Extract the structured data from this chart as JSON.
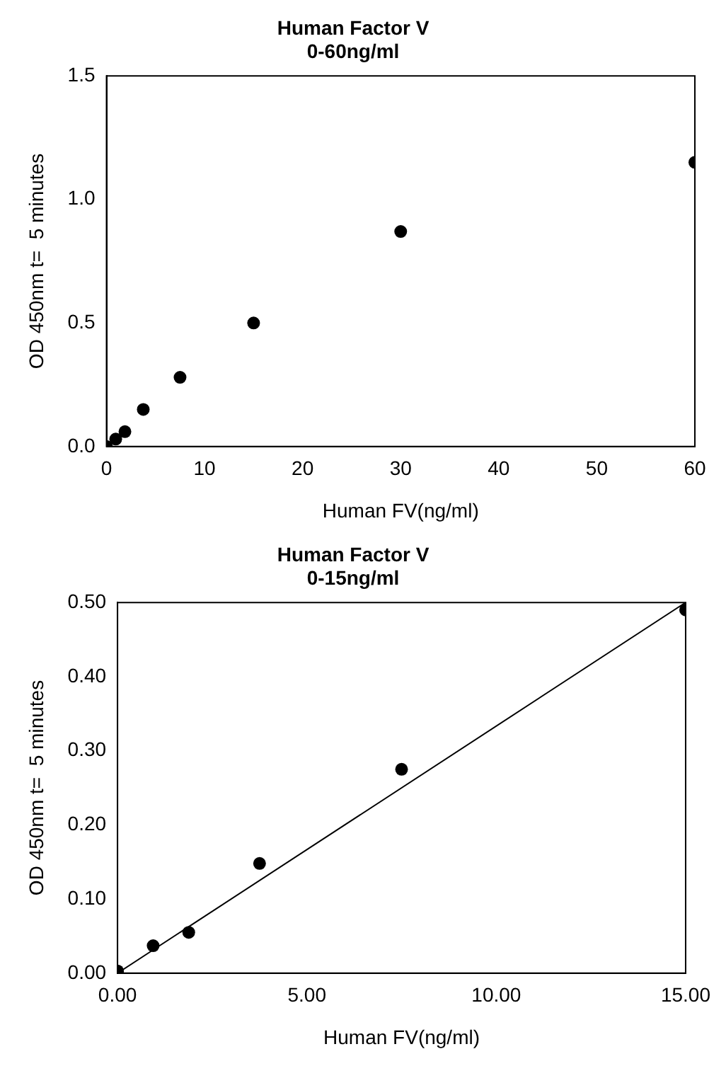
{
  "chart_data": [
    {
      "type": "scatter",
      "title": "Human Factor V",
      "subtitle": "0-60ng/ml",
      "xlabel": "Human FV(ng/ml)",
      "ylabel": "OD 450nm t=  5 minutes",
      "marker": "circle",
      "series": [
        {
          "color": "#000000",
          "x": [
            0,
            0.94,
            1.88,
            3.75,
            7.5,
            15,
            30,
            60
          ],
          "values": [
            0.0,
            0.03,
            0.06,
            0.15,
            0.28,
            0.5,
            0.87,
            1.15
          ]
        }
      ],
      "xlim": [
        0,
        60
      ],
      "xticks": [
        0,
        10,
        20,
        30,
        40,
        50,
        60
      ],
      "ylim": [
        0,
        1.5
      ],
      "yticks": [
        {
          "value": 0,
          "label": "0.0"
        },
        {
          "value": 0.5,
          "label": "0.5"
        },
        {
          "value": 1,
          "label": "1.0"
        },
        {
          "value": 1.5,
          "label": "1.5"
        }
      ]
    },
    {
      "type": "scatter",
      "title": "Human Factor V",
      "subtitle": "0-15ng/ml",
      "xlabel": "Human FV(ng/ml)",
      "ylabel": "OD 450nm t=  5 minutes",
      "marker": "circle",
      "series": [
        {
          "color": "#000000",
          "x": [
            0,
            0.94,
            1.88,
            3.75,
            7.5,
            15
          ],
          "values": [
            0.003,
            0.037,
            0.055,
            0.148,
            0.275,
            0.49
          ]
        },
        {
          "type": "line",
          "marker": "none",
          "color": "#000000",
          "x": [
            0,
            15
          ],
          "values": [
            0,
            0.5
          ]
        }
      ],
      "xlim": [
        0,
        15
      ],
      "xticks": [
        {
          "value": 0,
          "label": "0.00"
        },
        {
          "value": 5,
          "label": "5.00"
        },
        {
          "value": 10,
          "label": "10.00"
        },
        {
          "value": 15,
          "label": "15.00"
        }
      ],
      "ylim": [
        0,
        0.5
      ],
      "yticks": [
        {
          "value": 0,
          "label": "0.00"
        },
        {
          "value": 0.1,
          "label": "0.10"
        },
        {
          "value": 0.2,
          "label": "0.20"
        },
        {
          "value": 0.3,
          "label": "0.30"
        },
        {
          "value": 0.4,
          "label": "0.40"
        },
        {
          "value": 0.5,
          "label": "0.50"
        }
      ]
    }
  ]
}
